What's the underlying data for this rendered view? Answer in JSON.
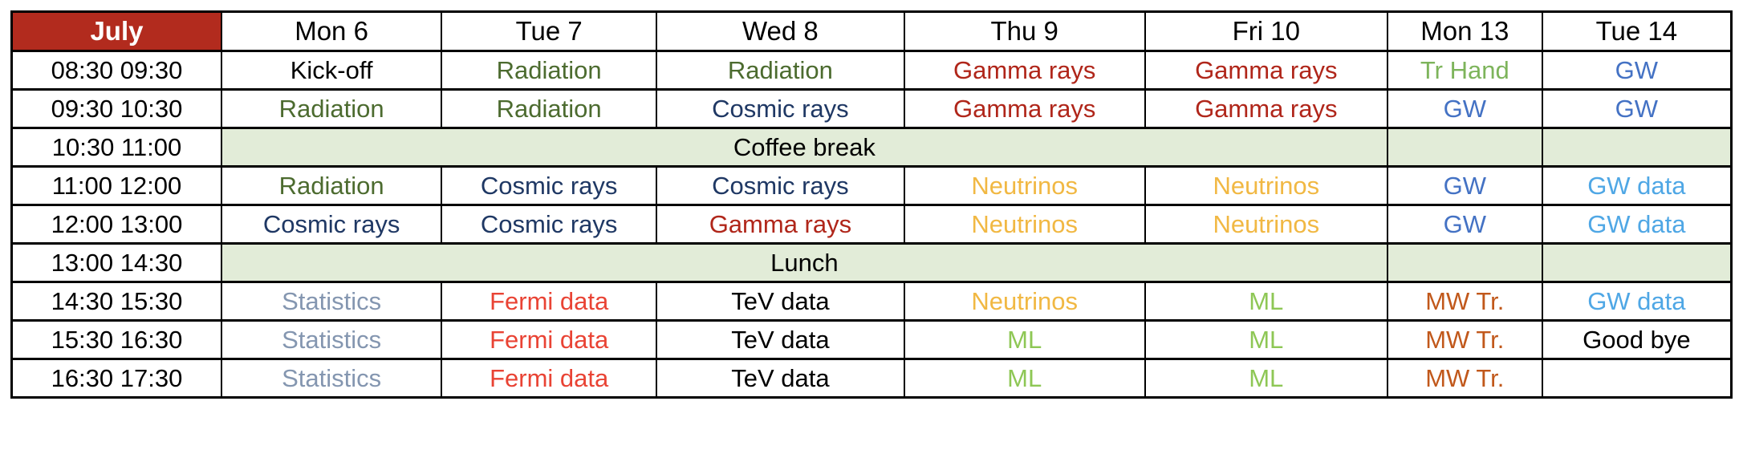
{
  "table": {
    "month_label": "July",
    "day_headers": [
      "Mon 6",
      "Tue 7",
      "Wed 8",
      "Thu 9",
      "Fri 10",
      "Mon 13",
      "Tue 14"
    ],
    "rows": [
      {
        "time": "08:30 09:30",
        "cells": [
          {
            "text": "Kick-off",
            "color": "plain"
          },
          {
            "text": "Radiation",
            "color": "radiation"
          },
          {
            "text": "Radiation",
            "color": "radiation"
          },
          {
            "text": "Gamma rays",
            "color": "gamma"
          },
          {
            "text": "Gamma rays",
            "color": "gamma"
          },
          {
            "text": "Tr Hand",
            "color": "trhand"
          },
          {
            "text": "GW",
            "color": "gw"
          }
        ]
      },
      {
        "time": "09:30 10:30",
        "cells": [
          {
            "text": "Radiation",
            "color": "radiation"
          },
          {
            "text": "Radiation",
            "color": "radiation"
          },
          {
            "text": "Cosmic rays",
            "color": "cosmic"
          },
          {
            "text": "Gamma rays",
            "color": "gamma"
          },
          {
            "text": "Gamma rays",
            "color": "gamma"
          },
          {
            "text": "GW",
            "color": "gw"
          },
          {
            "text": "GW",
            "color": "gw"
          }
        ]
      },
      {
        "time": "10:30 11:00",
        "break": true,
        "label": "Coffee break"
      },
      {
        "time": "11:00 12:00",
        "cells": [
          {
            "text": "Radiation",
            "color": "radiation"
          },
          {
            "text": "Cosmic rays",
            "color": "cosmic"
          },
          {
            "text": "Cosmic rays",
            "color": "cosmic"
          },
          {
            "text": "Neutrinos",
            "color": "neutrinos"
          },
          {
            "text": "Neutrinos",
            "color": "neutrinos"
          },
          {
            "text": "GW",
            "color": "gw"
          },
          {
            "text": "GW data",
            "color": "gwdata"
          }
        ]
      },
      {
        "time": "12:00 13:00",
        "cells": [
          {
            "text": "Cosmic rays",
            "color": "cosmic"
          },
          {
            "text": "Cosmic rays",
            "color": "cosmic"
          },
          {
            "text": "Gamma rays",
            "color": "gamma"
          },
          {
            "text": "Neutrinos",
            "color": "neutrinos"
          },
          {
            "text": "Neutrinos",
            "color": "neutrinos"
          },
          {
            "text": "GW",
            "color": "gw"
          },
          {
            "text": "GW data",
            "color": "gwdata"
          }
        ]
      },
      {
        "time": "13:00 14:30",
        "break": true,
        "label": "Lunch"
      },
      {
        "time": "14:30 15:30",
        "cells": [
          {
            "text": "Statistics",
            "color": "statistics"
          },
          {
            "text": "Fermi data",
            "color": "fermi"
          },
          {
            "text": "TeV data",
            "color": "plain"
          },
          {
            "text": "Neutrinos",
            "color": "neutrinos"
          },
          {
            "text": "ML",
            "color": "ml"
          },
          {
            "text": "MW Tr.",
            "color": "mwtr"
          },
          {
            "text": "GW data",
            "color": "gwdata"
          }
        ]
      },
      {
        "time": "15:30 16:30",
        "cells": [
          {
            "text": "Statistics",
            "color": "statistics"
          },
          {
            "text": "Fermi data",
            "color": "fermi"
          },
          {
            "text": "TeV data",
            "color": "plain"
          },
          {
            "text": "ML",
            "color": "ml"
          },
          {
            "text": "ML",
            "color": "ml"
          },
          {
            "text": "MW Tr.",
            "color": "mwtr"
          },
          {
            "text": "Good bye",
            "color": "plain"
          }
        ]
      },
      {
        "time": "16:30 17:30",
        "cells": [
          {
            "text": "Statistics",
            "color": "statistics"
          },
          {
            "text": "Fermi data",
            "color": "fermi"
          },
          {
            "text": "TeV data",
            "color": "plain"
          },
          {
            "text": "ML",
            "color": "ml"
          },
          {
            "text": "ML",
            "color": "ml"
          },
          {
            "text": "MW Tr.",
            "color": "mwtr"
          },
          {
            "text": "",
            "color": "plain"
          }
        ]
      }
    ]
  },
  "colors": {
    "month_bg": "#B22B1E",
    "month_text": "#FFFFFF",
    "break_bg": "#E2ECD8",
    "plain": "#000000",
    "radiation": "#4C6B2F",
    "cosmic": "#1F3864",
    "gamma": "#B0261A",
    "neutrinos": "#F1B843",
    "gw": "#4472C4",
    "gwdata": "#4FA7E5",
    "trhand": "#7DB45B",
    "statistics": "#8496B0",
    "fermi": "#E94334",
    "ml": "#8EC755",
    "mwtr": "#C1581B"
  }
}
